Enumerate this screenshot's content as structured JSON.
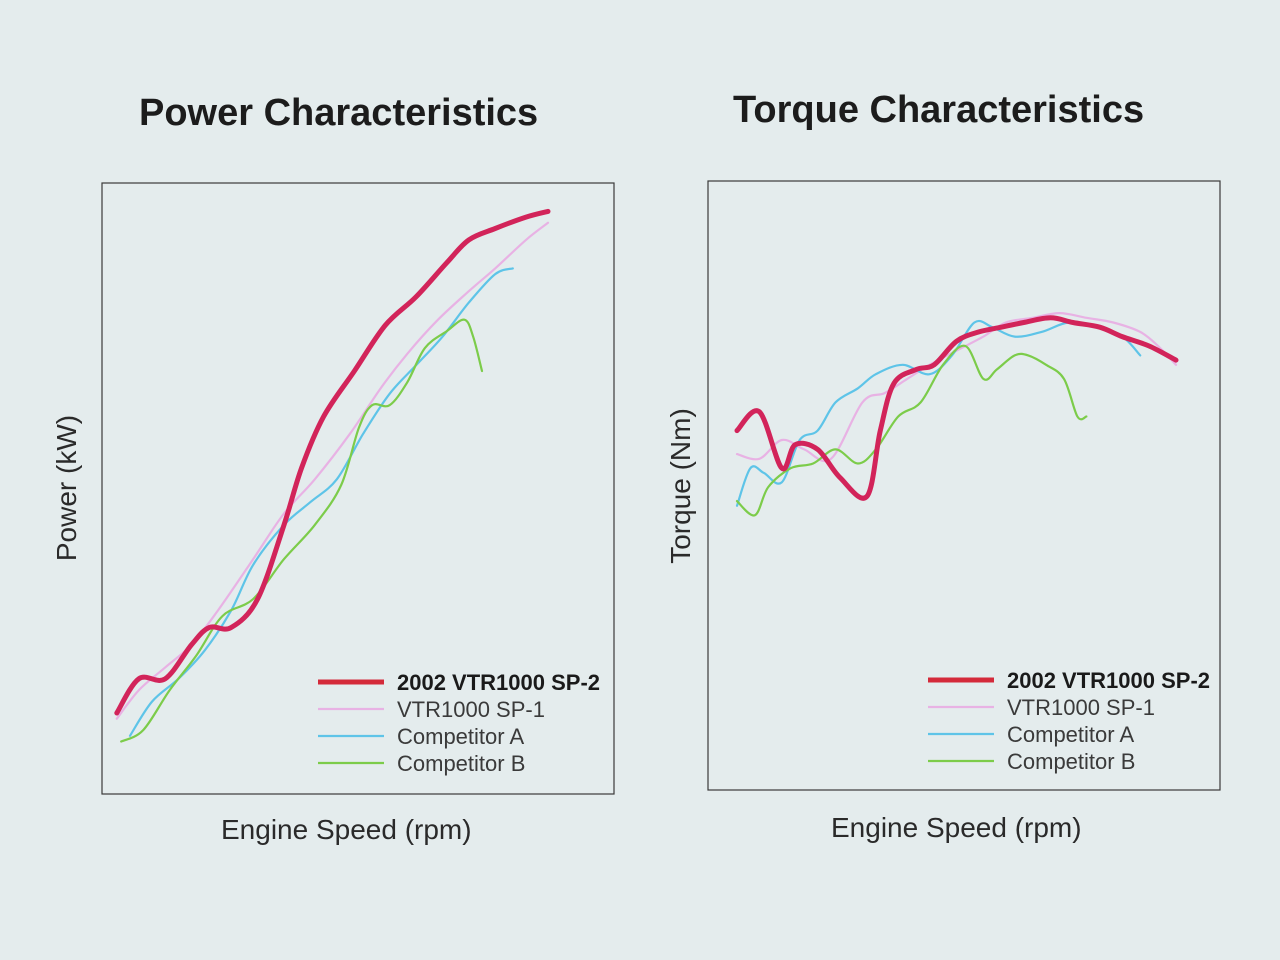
{
  "chart_data": [
    {
      "type": "line",
      "title": "Power Characteristics",
      "xlabel": "Engine Speed (rpm)",
      "ylabel": "Power (kW)",
      "xlim": [
        0,
        100
      ],
      "ylim": [
        0,
        100
      ],
      "grid": false,
      "legend_position": "bottom-right",
      "series": [
        {
          "name": "2002 VTR1000 SP-2",
          "color": "#d2245a",
          "bold": true,
          "x": [
            2,
            7,
            13,
            19,
            23,
            28,
            34,
            40,
            44,
            49,
            56,
            63,
            70,
            77,
            82,
            88,
            95,
            100
          ],
          "y": [
            10,
            16,
            16,
            22,
            25,
            25,
            30,
            43,
            53,
            62,
            70,
            78,
            83,
            89,
            93,
            95,
            97,
            98
          ]
        },
        {
          "name": "VTR1000 SP-1",
          "color": "#e8b2e4",
          "bold": false,
          "x": [
            2,
            7,
            13,
            19,
            25,
            33,
            40,
            47,
            55,
            62,
            68,
            75,
            82,
            88,
            95,
            100
          ],
          "y": [
            9,
            14,
            18,
            22,
            28,
            37,
            45,
            51,
            59,
            67,
            73,
            79,
            84,
            88,
            93,
            96
          ]
        },
        {
          "name": "Competitor A",
          "color": "#5ec4e8",
          "bold": false,
          "x": [
            5,
            10,
            16,
            22,
            28,
            33,
            40,
            46,
            52,
            58,
            64,
            70,
            76,
            82,
            88,
            92
          ],
          "y": [
            6,
            12,
            16,
            21,
            28,
            36,
            43,
            47,
            51,
            59,
            66,
            71,
            76,
            82,
            87,
            88
          ]
        },
        {
          "name": "Competitor B",
          "color": "#7ccc4a",
          "bold": false,
          "x": [
            3,
            8,
            14,
            20,
            26,
            33,
            40,
            47,
            53,
            57,
            60,
            64,
            68,
            72,
            77,
            81,
            83,
            85
          ],
          "y": [
            5,
            7,
            14,
            20,
            27,
            30,
            37,
            43,
            50,
            60,
            64,
            64,
            68,
            74,
            77,
            79,
            76,
            70
          ]
        }
      ]
    },
    {
      "type": "line",
      "title": "Torque Characteristics",
      "xlabel": "Engine Speed (rpm)",
      "ylabel": "Torque (Nm)",
      "xlim": [
        0,
        100
      ],
      "ylim": [
        0,
        100
      ],
      "grid": false,
      "legend_position": "bottom-right",
      "series": [
        {
          "name": "2002 VTR1000 SP-2",
          "color": "#d2245a",
          "bold": true,
          "x": [
            2,
            7,
            12,
            15,
            20,
            25,
            31,
            34,
            37,
            42,
            46,
            51,
            56,
            61,
            66,
            72,
            77,
            83,
            88,
            94,
            100
          ],
          "y": [
            52,
            56,
            44,
            49,
            48,
            42,
            38,
            52,
            62,
            65,
            66,
            71,
            73,
            74,
            75,
            76,
            75,
            74,
            72,
            70,
            67
          ]
        },
        {
          "name": "VTR1000 SP-1",
          "color": "#e8b2e4",
          "bold": false,
          "x": [
            2,
            7,
            12,
            17,
            23,
            30,
            35,
            40,
            45,
            51,
            57,
            62,
            68,
            74,
            80,
            86,
            92,
            96,
            100
          ],
          "y": [
            47,
            46,
            50,
            48,
            46,
            58,
            60,
            63,
            66,
            69,
            72,
            75,
            76,
            77,
            76,
            75,
            73,
            70,
            66
          ]
        },
        {
          "name": "Competitor A",
          "color": "#5ec4e8",
          "bold": false,
          "x": [
            2,
            5,
            8,
            12,
            16,
            20,
            24,
            29,
            33,
            39,
            45,
            50,
            55,
            59,
            64,
            70,
            76,
            82,
            88,
            92
          ],
          "y": [
            36,
            44,
            43,
            41,
            50,
            52,
            58,
            61,
            64,
            66,
            64,
            68,
            75,
            74,
            72,
            73,
            75,
            74,
            72,
            68
          ]
        },
        {
          "name": "Competitor B",
          "color": "#7ccc4a",
          "bold": false,
          "x": [
            2,
            6,
            9,
            14,
            19,
            24,
            29,
            33,
            38,
            43,
            48,
            53,
            57,
            60,
            64,
            67,
            71,
            75,
            78,
            80
          ],
          "y": [
            37,
            34,
            40,
            44,
            45,
            48,
            45,
            48,
            55,
            58,
            66,
            70,
            63,
            65,
            68,
            68,
            66,
            63,
            55,
            55
          ]
        }
      ]
    }
  ]
}
